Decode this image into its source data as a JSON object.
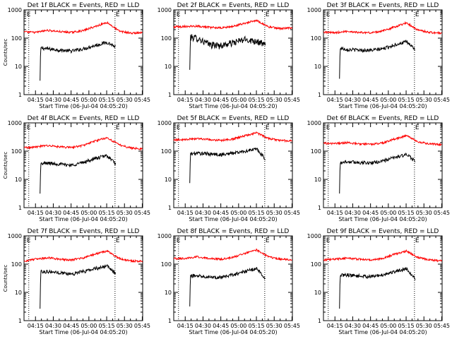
{
  "colors": {
    "events": "#000000",
    "lld": "#ff0000",
    "axis": "#000000",
    "background": "#ffffff"
  },
  "chart_data": [
    {
      "type": "line",
      "title": "Det 1f BLACK = Events, RED = LLD",
      "ylabel": "Counts/sec",
      "xlabel": "Start Time (06-Jul-04 04:05:20)",
      "xticks": [
        "04:15",
        "04:30",
        "04:45",
        "05:00",
        "05:15",
        "05:30",
        "05:45"
      ],
      "yticks": [
        "1",
        "10",
        "100",
        "1000"
      ],
      "ylim": [
        1,
        1000
      ],
      "yscale": "log",
      "x_minutes": [
        0,
        100
      ],
      "events_start": 13.5,
      "events_end": 77.5,
      "markers": {
        "left_x": 4.0,
        "right_x": 76.7,
        "left": "E",
        "right": "E"
      },
      "series": [
        {
          "values": [
            [
              13.5,
              3.0
            ],
            [
              14,
              45
            ],
            [
              20,
              42
            ],
            [
              30,
              38
            ],
            [
              40,
              35
            ],
            [
              50,
              42
            ],
            [
              60,
              55
            ],
            [
              70,
              72
            ],
            [
              77.5,
              48
            ]
          ]
        },
        {
          "values": [
            [
              0,
              165
            ],
            [
              10,
              160
            ],
            [
              20,
              190
            ],
            [
              30,
              170
            ],
            [
              40,
              160
            ],
            [
              50,
              185
            ],
            [
              60,
              260
            ],
            [
              70,
              360
            ],
            [
              80,
              180
            ],
            [
              90,
              150
            ],
            [
              100,
              155
            ]
          ]
        }
      ]
    },
    {
      "type": "line",
      "title": "Det 2f BLACK = Events, RED = LLD",
      "ylabel": "",
      "xlabel": "Start Time (06-Jul-04 04:05:20)",
      "xticks": [
        "04:15",
        "04:30",
        "04:45",
        "05:00",
        "05:15",
        "05:30",
        "05:45"
      ],
      "yticks": [
        "1",
        "10",
        "100",
        "1000"
      ],
      "ylim": [
        1,
        1000
      ],
      "yscale": "log",
      "x_minutes": [
        0,
        100
      ],
      "events_start": 13.5,
      "events_end": 77.5,
      "markers": {
        "left_x": 4.0,
        "right_x": 76.7,
        "left": "E",
        "right": "E"
      },
      "series": [
        {
          "values": [
            [
              13.5,
              7.0
            ],
            [
              14,
              110
            ],
            [
              20,
              100
            ],
            [
              30,
              60
            ],
            [
              40,
              55
            ],
            [
              50,
              70
            ],
            [
              60,
              90
            ],
            [
              70,
              80
            ],
            [
              77.5,
              55
            ]
          ]
        },
        {
          "values": [
            [
              0,
              250
            ],
            [
              10,
              260
            ],
            [
              20,
              270
            ],
            [
              30,
              240
            ],
            [
              40,
              230
            ],
            [
              50,
              260
            ],
            [
              60,
              340
            ],
            [
              70,
              420
            ],
            [
              80,
              250
            ],
            [
              90,
              220
            ],
            [
              100,
              230
            ]
          ]
        }
      ]
    },
    {
      "type": "line",
      "title": "Det 3f BLACK = Events, RED = LLD",
      "ylabel": "",
      "xlabel": "Start Time (06-Jul-04 04:05:20)",
      "xticks": [
        "04:15",
        "04:30",
        "04:45",
        "05:00",
        "05:15",
        "05:30",
        "05:45"
      ],
      "yticks": [
        "1",
        "10",
        "100",
        "1000"
      ],
      "ylim": [
        1,
        1000
      ],
      "yscale": "log",
      "x_minutes": [
        0,
        100
      ],
      "events_start": 13.5,
      "events_end": 77.5,
      "markers": {
        "left_x": 4.0,
        "right_x": 76.7,
        "left": "E",
        "right": "E"
      },
      "series": [
        {
          "values": [
            [
              13.5,
              3.5
            ],
            [
              14,
              45
            ],
            [
              20,
              40
            ],
            [
              30,
              38
            ],
            [
              40,
              37
            ],
            [
              50,
              42
            ],
            [
              60,
              58
            ],
            [
              70,
              75
            ],
            [
              77.5,
              40
            ]
          ]
        },
        {
          "values": [
            [
              0,
              160
            ],
            [
              10,
              155
            ],
            [
              20,
              175
            ],
            [
              30,
              160
            ],
            [
              40,
              155
            ],
            [
              50,
              180
            ],
            [
              60,
              250
            ],
            [
              70,
              350
            ],
            [
              80,
              190
            ],
            [
              90,
              160
            ],
            [
              100,
              150
            ]
          ]
        }
      ]
    },
    {
      "type": "line",
      "title": "Det 4f BLACK = Events, RED = LLD",
      "ylabel": "Counts/sec",
      "xlabel": "Start Time (06-Jul-04 04:05:20)",
      "xticks": [
        "04:15",
        "04:30",
        "04:45",
        "05:00",
        "05:15",
        "05:30",
        "05:45"
      ],
      "yticks": [
        "1",
        "10",
        "100",
        "1000"
      ],
      "ylim": [
        1,
        1000
      ],
      "yscale": "log",
      "x_minutes": [
        0,
        100
      ],
      "events_start": 13.5,
      "events_end": 77.5,
      "markers": {
        "left_x": 4.0,
        "right_x": 76.7,
        "left": "E",
        "right": "E"
      },
      "series": [
        {
          "values": [
            [
              13.5,
              3.0
            ],
            [
              14,
              35
            ],
            [
              20,
              38
            ],
            [
              30,
              35
            ],
            [
              40,
              32
            ],
            [
              50,
              40
            ],
            [
              60,
              55
            ],
            [
              70,
              70
            ],
            [
              77.5,
              35
            ]
          ]
        },
        {
          "values": [
            [
              0,
              130
            ],
            [
              10,
              140
            ],
            [
              20,
              160
            ],
            [
              30,
              140
            ],
            [
              40,
              135
            ],
            [
              50,
              160
            ],
            [
              60,
              230
            ],
            [
              70,
              300
            ],
            [
              80,
              170
            ],
            [
              90,
              130
            ],
            [
              100,
              120
            ]
          ]
        }
      ]
    },
    {
      "type": "line",
      "title": "Det 5f BLACK = Events, RED = LLD",
      "ylabel": "",
      "xlabel": "Start Time (06-Jul-04 04:05:20)",
      "xticks": [
        "04:15",
        "04:30",
        "04:45",
        "05:00",
        "05:15",
        "05:30",
        "05:45"
      ],
      "yticks": [
        "1",
        "10",
        "100",
        "1000"
      ],
      "ylim": [
        1,
        1000
      ],
      "yscale": "log",
      "x_minutes": [
        0,
        100
      ],
      "events_start": 13.5,
      "events_end": 77.5,
      "markers": {
        "left_x": 4.0,
        "right_x": 76.7,
        "left": "E",
        "right": "E"
      },
      "series": [
        {
          "values": [
            [
              13.5,
              7.0
            ],
            [
              14,
              80
            ],
            [
              20,
              85
            ],
            [
              30,
              80
            ],
            [
              40,
              75
            ],
            [
              50,
              85
            ],
            [
              60,
              100
            ],
            [
              70,
              120
            ],
            [
              77.5,
              50
            ]
          ]
        },
        {
          "values": [
            [
              0,
              250
            ],
            [
              10,
              260
            ],
            [
              20,
              280
            ],
            [
              30,
              260
            ],
            [
              40,
              240
            ],
            [
              50,
              270
            ],
            [
              60,
              350
            ],
            [
              70,
              450
            ],
            [
              80,
              280
            ],
            [
              90,
              240
            ],
            [
              100,
              230
            ]
          ]
        }
      ]
    },
    {
      "type": "line",
      "title": "Det 6f BLACK = Events, RED = LLD",
      "ylabel": "",
      "xlabel": "Start Time (06-Jul-04 04:05:20)",
      "xticks": [
        "04:15",
        "04:30",
        "04:45",
        "05:00",
        "05:15",
        "05:30",
        "05:45"
      ],
      "yticks": [
        "1",
        "10",
        "100",
        "1000"
      ],
      "ylim": [
        1,
        1000
      ],
      "yscale": "log",
      "x_minutes": [
        0,
        100
      ],
      "events_start": 13.5,
      "events_end": 77.5,
      "markers": {
        "left_x": 4.0,
        "right_x": 76.7,
        "left": "E",
        "right": "E"
      },
      "series": [
        {
          "values": [
            [
              13.5,
              3.0
            ],
            [
              14,
              40
            ],
            [
              20,
              42
            ],
            [
              30,
              40
            ],
            [
              40,
              38
            ],
            [
              50,
              45
            ],
            [
              60,
              60
            ],
            [
              70,
              75
            ],
            [
              77.5,
              45
            ]
          ]
        },
        {
          "values": [
            [
              0,
              190
            ],
            [
              10,
              185
            ],
            [
              20,
              200
            ],
            [
              30,
              180
            ],
            [
              40,
              175
            ],
            [
              50,
              195
            ],
            [
              60,
              270
            ],
            [
              70,
              350
            ],
            [
              80,
              210
            ],
            [
              90,
              180
            ],
            [
              100,
              170
            ]
          ]
        }
      ]
    },
    {
      "type": "line",
      "title": "Det 7f BLACK = Events, RED = LLD",
      "ylabel": "Counts/sec",
      "xlabel": "Start Time (06-Jul-04 04:05:20)",
      "xticks": [
        "04:15",
        "04:30",
        "04:45",
        "05:00",
        "05:15",
        "05:30",
        "05:45"
      ],
      "yticks": [
        "1",
        "10",
        "100",
        "1000"
      ],
      "ylim": [
        1,
        1000
      ],
      "yscale": "log",
      "x_minutes": [
        0,
        100
      ],
      "events_start": 13.5,
      "events_end": 77.5,
      "markers": {
        "left_x": 4.0,
        "right_x": 76.7,
        "left": "E",
        "right": "E"
      },
      "series": [
        {
          "values": [
            [
              13.5,
              2.5
            ],
            [
              14,
              55
            ],
            [
              20,
              55
            ],
            [
              30,
              50
            ],
            [
              40,
              45
            ],
            [
              50,
              55
            ],
            [
              60,
              70
            ],
            [
              70,
              85
            ],
            [
              77.5,
              45
            ]
          ]
        },
        {
          "values": [
            [
              0,
              130
            ],
            [
              10,
              150
            ],
            [
              20,
              170
            ],
            [
              30,
              150
            ],
            [
              40,
              140
            ],
            [
              50,
              165
            ],
            [
              60,
              230
            ],
            [
              70,
              290
            ],
            [
              80,
              160
            ],
            [
              90,
              130
            ],
            [
              100,
              125
            ]
          ]
        }
      ]
    },
    {
      "type": "line",
      "title": "Det 8f BLACK = Events, RED = LLD",
      "ylabel": "",
      "xlabel": "Start Time (06-Jul-04 04:05:20)",
      "xticks": [
        "04:15",
        "04:30",
        "04:45",
        "05:00",
        "05:15",
        "05:30",
        "05:45"
      ],
      "yticks": [
        "1",
        "10",
        "100",
        "1000"
      ],
      "ylim": [
        1,
        1000
      ],
      "yscale": "log",
      "x_minutes": [
        0,
        100
      ],
      "events_start": 13.5,
      "events_end": 77.5,
      "markers": {
        "left_x": 4.0,
        "right_x": 76.7,
        "left": "E",
        "right": "E"
      },
      "series": [
        {
          "values": [
            [
              13.5,
              3.0
            ],
            [
              14,
              38
            ],
            [
              20,
              40
            ],
            [
              30,
              36
            ],
            [
              40,
              34
            ],
            [
              50,
              42
            ],
            [
              60,
              55
            ],
            [
              70,
              70
            ],
            [
              77.5,
              30
            ]
          ]
        },
        {
          "values": [
            [
              0,
              160
            ],
            [
              10,
              160
            ],
            [
              20,
              180
            ],
            [
              30,
              160
            ],
            [
              40,
              150
            ],
            [
              50,
              175
            ],
            [
              60,
              240
            ],
            [
              70,
              320
            ],
            [
              80,
              180
            ],
            [
              90,
              150
            ],
            [
              100,
              140
            ]
          ]
        }
      ]
    },
    {
      "type": "line",
      "title": "Det 9f BLACK = Events, RED = LLD",
      "ylabel": "",
      "xlabel": "Start Time (06-Jul-04 04:05:20)",
      "xticks": [
        "04:15",
        "04:30",
        "04:45",
        "05:00",
        "05:15",
        "05:30",
        "05:45"
      ],
      "yticks": [
        "1",
        "10",
        "100",
        "1000"
      ],
      "ylim": [
        1,
        1000
      ],
      "yscale": "log",
      "x_minutes": [
        0,
        100
      ],
      "events_start": 13.5,
      "events_end": 77.5,
      "markers": {
        "left_x": 4.0,
        "right_x": 76.7,
        "left": "E",
        "right": "E"
      },
      "series": [
        {
          "values": [
            [
              13.5,
              2.5
            ],
            [
              14,
              40
            ],
            [
              20,
              42
            ],
            [
              30,
              38
            ],
            [
              40,
              36
            ],
            [
              50,
              42
            ],
            [
              60,
              55
            ],
            [
              70,
              70
            ],
            [
              77.5,
              30
            ]
          ]
        },
        {
          "values": [
            [
              0,
              140
            ],
            [
              10,
              150
            ],
            [
              20,
              165
            ],
            [
              30,
              150
            ],
            [
              40,
              140
            ],
            [
              50,
              160
            ],
            [
              60,
              225
            ],
            [
              70,
              290
            ],
            [
              80,
              170
            ],
            [
              90,
              140
            ],
            [
              100,
              130
            ]
          ]
        }
      ]
    }
  ]
}
